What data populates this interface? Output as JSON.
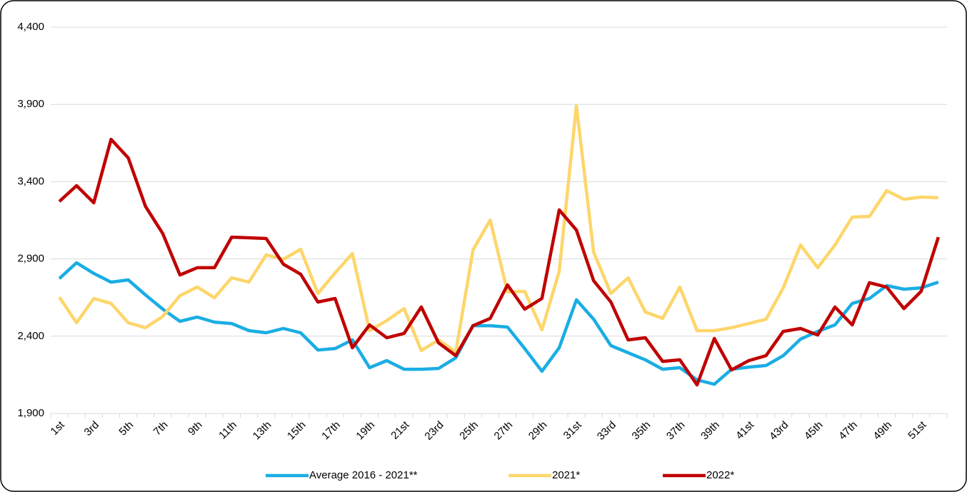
{
  "chart_data": {
    "type": "line",
    "categories": [
      "1st",
      null,
      "3rd",
      null,
      "5th",
      null,
      "7th",
      null,
      "9th",
      null,
      "11th",
      null,
      "13th",
      null,
      "15th",
      null,
      "17th",
      null,
      "19th",
      null,
      "21st",
      null,
      "23rd",
      null,
      "25th",
      null,
      "27th",
      null,
      "29th",
      null,
      "31st",
      null,
      "33rd",
      null,
      "35th",
      null,
      "37th",
      null,
      "39th",
      null,
      "41st",
      null,
      "43rd",
      null,
      "45th",
      null,
      "47th",
      null,
      "49th",
      null,
      "51st",
      null
    ],
    "series": [
      {
        "name": "Average 2016 - 2021**",
        "color": "#1aade4",
        "values": [
          2773,
          2875,
          2806,
          2750,
          2764,
          2667,
          2575,
          2496,
          2524,
          2491,
          2482,
          2436,
          2422,
          2450,
          2422,
          2311,
          2320,
          2376,
          2196,
          2242,
          2186,
          2186,
          2191,
          2260,
          2468,
          2468,
          2459,
          2320,
          2173,
          2325,
          2635,
          2510,
          2339,
          2293,
          2247,
          2186,
          2196,
          2117,
          2089,
          2186,
          2200,
          2210,
          2274,
          2381,
          2431,
          2473,
          2612,
          2644,
          2727,
          2704,
          2713,
          2750
        ]
      },
      {
        "name": "2021*",
        "color": "#fdd66b",
        "values": [
          2653,
          2487,
          2644,
          2612,
          2487,
          2455,
          2528,
          2662,
          2718,
          2649,
          2778,
          2750,
          2926,
          2898,
          2963,
          2676,
          2810,
          2935,
          2436,
          2501,
          2579,
          2307,
          2376,
          2297,
          2958,
          3152,
          2686,
          2690,
          2441,
          2820,
          3892,
          2944,
          2676,
          2778,
          2556,
          2515,
          2718,
          2436,
          2436,
          2455,
          2482,
          2510,
          2713,
          2990,
          2843,
          2990,
          3171,
          3175,
          3342,
          3286,
          3300,
          3296
        ]
      },
      {
        "name": "2022*",
        "color": "#c00000",
        "values": [
          3272,
          3374,
          3263,
          3674,
          3554,
          3240,
          3064,
          2796,
          2843,
          2843,
          3041,
          3037,
          3032,
          2866,
          2801,
          2621,
          2644,
          2325,
          2473,
          2390,
          2418,
          2589,
          2357,
          2274,
          2468,
          2515,
          2732,
          2575,
          2644,
          3217,
          3087,
          2759,
          2621,
          2376,
          2390,
          2237,
          2247,
          2085,
          2385,
          2182,
          2242,
          2274,
          2431,
          2450,
          2408,
          2589,
          2473,
          2746,
          2718,
          2579,
          2690,
          3041
        ]
      }
    ],
    "ylim": [
      1900,
      4400
    ],
    "yticks": [
      {
        "value": 1900,
        "label": "1,900"
      },
      {
        "value": 2400,
        "label": "2,400"
      },
      {
        "value": 2900,
        "label": "2,900"
      },
      {
        "value": 3400,
        "label": "3,400"
      },
      {
        "value": 3900,
        "label": "3,900"
      },
      {
        "value": 4400,
        "label": "4,400"
      }
    ],
    "grid": true,
    "legend": "bottom"
  }
}
